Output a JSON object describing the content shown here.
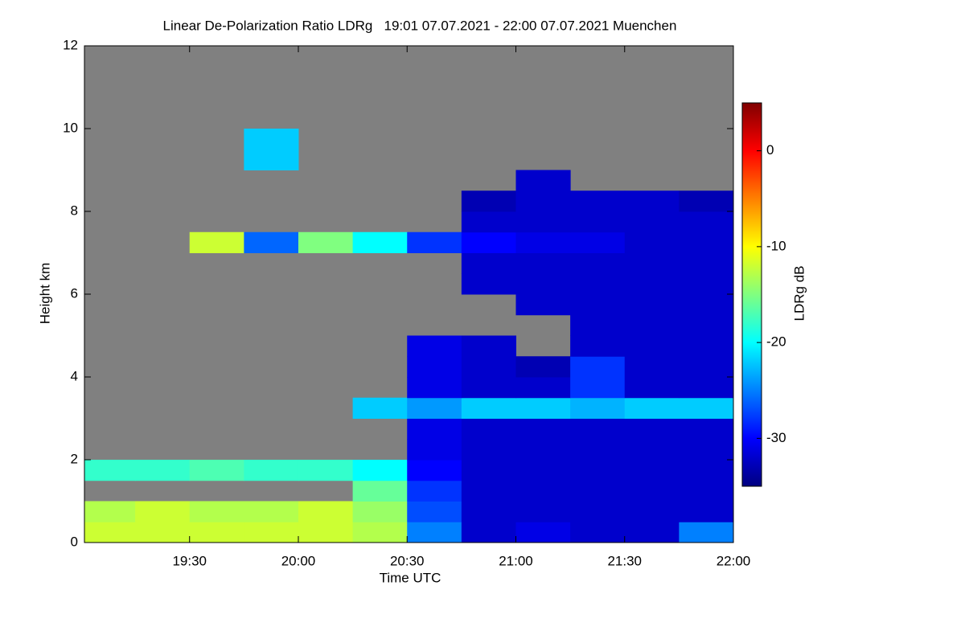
{
  "chart_data": {
    "type": "heatmap",
    "title": "Linear De-Polarization Ratio LDRg   19:01 07.07.2021 - 22:00 07.07.2021 Muenchen",
    "xlabel": "Time UTC",
    "ylabel": "Height km",
    "background": "#808080",
    "xlim": [
      19.0167,
      22.0
    ],
    "ylim": [
      0,
      12
    ],
    "xticks": [
      {
        "value": 19.5,
        "label": "19:30"
      },
      {
        "value": 20.0,
        "label": "20:00"
      },
      {
        "value": 20.5,
        "label": "20:30"
      },
      {
        "value": 21.0,
        "label": "21:00"
      },
      {
        "value": 21.5,
        "label": "21:30"
      },
      {
        "value": 22.0,
        "label": "22:00"
      }
    ],
    "yticks": [
      0,
      2,
      4,
      6,
      8,
      10,
      12
    ],
    "x_bins": [
      19.0167,
      19.25,
      19.5,
      19.75,
      20.0,
      20.25,
      20.5,
      20.75,
      21.0,
      21.25,
      21.5,
      21.75,
      22.0
    ],
    "y_bins": [
      0,
      0.5,
      1,
      1.5,
      2,
      2.5,
      3,
      3.5,
      4,
      4.5,
      5,
      5.5,
      6,
      6.5,
      7,
      7.5,
      8,
      8.5,
      9,
      9.5,
      10
    ],
    "values": [
      [
        -12,
        -12,
        -12,
        -12,
        -12,
        -13,
        -25,
        -32,
        -31,
        -32,
        -32,
        -25
      ],
      [
        -13,
        -12,
        -13,
        -13,
        -12,
        -14,
        -27,
        -32,
        -32,
        -32,
        -32,
        -32
      ],
      [
        null,
        null,
        null,
        null,
        null,
        -16,
        -28,
        -32,
        -32,
        -32,
        -32,
        -32
      ],
      [
        -18,
        -18,
        -17,
        -18,
        -18,
        -20,
        -30,
        -32,
        -32,
        -32,
        -32,
        -32
      ],
      [
        null,
        null,
        null,
        null,
        null,
        null,
        -31,
        -32,
        -32,
        -32,
        -32,
        -32
      ],
      [
        null,
        null,
        null,
        null,
        null,
        null,
        -31,
        -32,
        -32,
        -32,
        -32,
        -32
      ],
      [
        null,
        null,
        null,
        null,
        null,
        -22,
        -24,
        -22,
        -22,
        -23,
        -22,
        -22
      ],
      [
        null,
        null,
        null,
        null,
        null,
        null,
        -31,
        -32,
        -32,
        -28,
        -32,
        -32
      ],
      [
        null,
        null,
        null,
        null,
        null,
        null,
        -31,
        -32,
        -33,
        -28,
        -32,
        -32
      ],
      [
        null,
        null,
        null,
        null,
        null,
        null,
        -31,
        -32,
        null,
        -32,
        -32,
        -32
      ],
      [
        null,
        null,
        null,
        null,
        null,
        null,
        null,
        null,
        null,
        -32,
        -32,
        -32
      ],
      [
        null,
        null,
        null,
        null,
        null,
        null,
        null,
        null,
        -32,
        -32,
        -32,
        -32
      ],
      [
        null,
        null,
        null,
        null,
        null,
        null,
        null,
        -32,
        -32,
        -32,
        -32,
        -32
      ],
      [
        null,
        null,
        null,
        null,
        null,
        null,
        null,
        -32,
        -32,
        -32,
        -32,
        -32
      ],
      [
        null,
        null,
        -12,
        -26,
        -15,
        -20,
        -28,
        -30,
        -31,
        -31,
        -32,
        -32
      ],
      [
        null,
        null,
        null,
        null,
        null,
        null,
        null,
        -32,
        -32,
        -32,
        -32,
        -32
      ],
      [
        null,
        null,
        null,
        null,
        null,
        null,
        null,
        -33,
        -32,
        -32,
        -32,
        -33
      ],
      [
        null,
        null,
        null,
        null,
        null,
        null,
        null,
        null,
        -32,
        null,
        null,
        null
      ],
      [
        null,
        null,
        null,
        -22,
        null,
        null,
        null,
        null,
        null,
        null,
        null,
        null
      ],
      [
        null,
        null,
        null,
        -22,
        null,
        null,
        null,
        null,
        null,
        null,
        null,
        null
      ]
    ],
    "colorbar": {
      "label": "LDRg dB",
      "colormap": "jet",
      "lim": [
        -35,
        5
      ],
      "ticks": [
        0,
        -10,
        -20,
        -30
      ]
    }
  }
}
